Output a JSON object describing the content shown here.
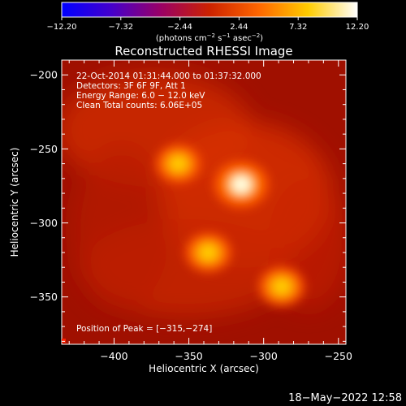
{
  "chart_data": {
    "type": "heatmap",
    "title": "Reconstructed RHESSI Image",
    "xlabel": "Heliocentric X (arcsec)",
    "ylabel": "Heliocentric Y (arcsec)",
    "xlim": [
      -435,
      -245
    ],
    "ylim": [
      -382,
      -190
    ],
    "x_ticks": [
      {
        "value": -400,
        "label": "−400"
      },
      {
        "value": -350,
        "label": "−350"
      },
      {
        "value": -300,
        "label": "−300"
      },
      {
        "value": -250,
        "label": "−250"
      }
    ],
    "y_ticks": [
      {
        "value": -200,
        "label": "−200"
      },
      {
        "value": -250,
        "label": "−250"
      },
      {
        "value": -300,
        "label": "−300"
      },
      {
        "value": -350,
        "label": "−350"
      }
    ],
    "colorbar": {
      "range": [
        -12.2,
        12.2
      ],
      "tick_labels": [
        "−12.20",
        "−7.32",
        "−2.44",
        "2.44",
        "7.32",
        "12.20"
      ],
      "tick_values": [
        -12.2,
        -7.32,
        -2.44,
        2.44,
        7.32,
        12.2
      ],
      "unit_parts": [
        "(photons cm",
        "−2",
        " s",
        "−1",
        " asec",
        "−2",
        ")"
      ],
      "colors": [
        "#0000ff",
        "#4400cc",
        "#990066",
        "#cc2200",
        "#ff6600",
        "#ffcc00",
        "#ffffff"
      ]
    },
    "annotations": [
      "22-Oct-2014 01:31:44.000 to 01:37:32.000",
      "Detectors: 3F 6F 9F, Att 1",
      "Energy Range: 6.0 − 12.0 keV",
      "Clean    Total counts: 6.06E+05"
    ],
    "peak_label": "Position of Peak = [−315,−274]",
    "sources": [
      {
        "x": -315,
        "y": -274,
        "intensity": 12.2
      },
      {
        "x": -357,
        "y": -260,
        "intensity": 9.5
      },
      {
        "x": -337,
        "y": -320,
        "intensity": 9.8
      },
      {
        "x": -288,
        "y": -343,
        "intensity": 9.8
      }
    ],
    "background_color": "#c41800"
  },
  "footer": {
    "timestamp": "18−May−2022 12:58"
  }
}
